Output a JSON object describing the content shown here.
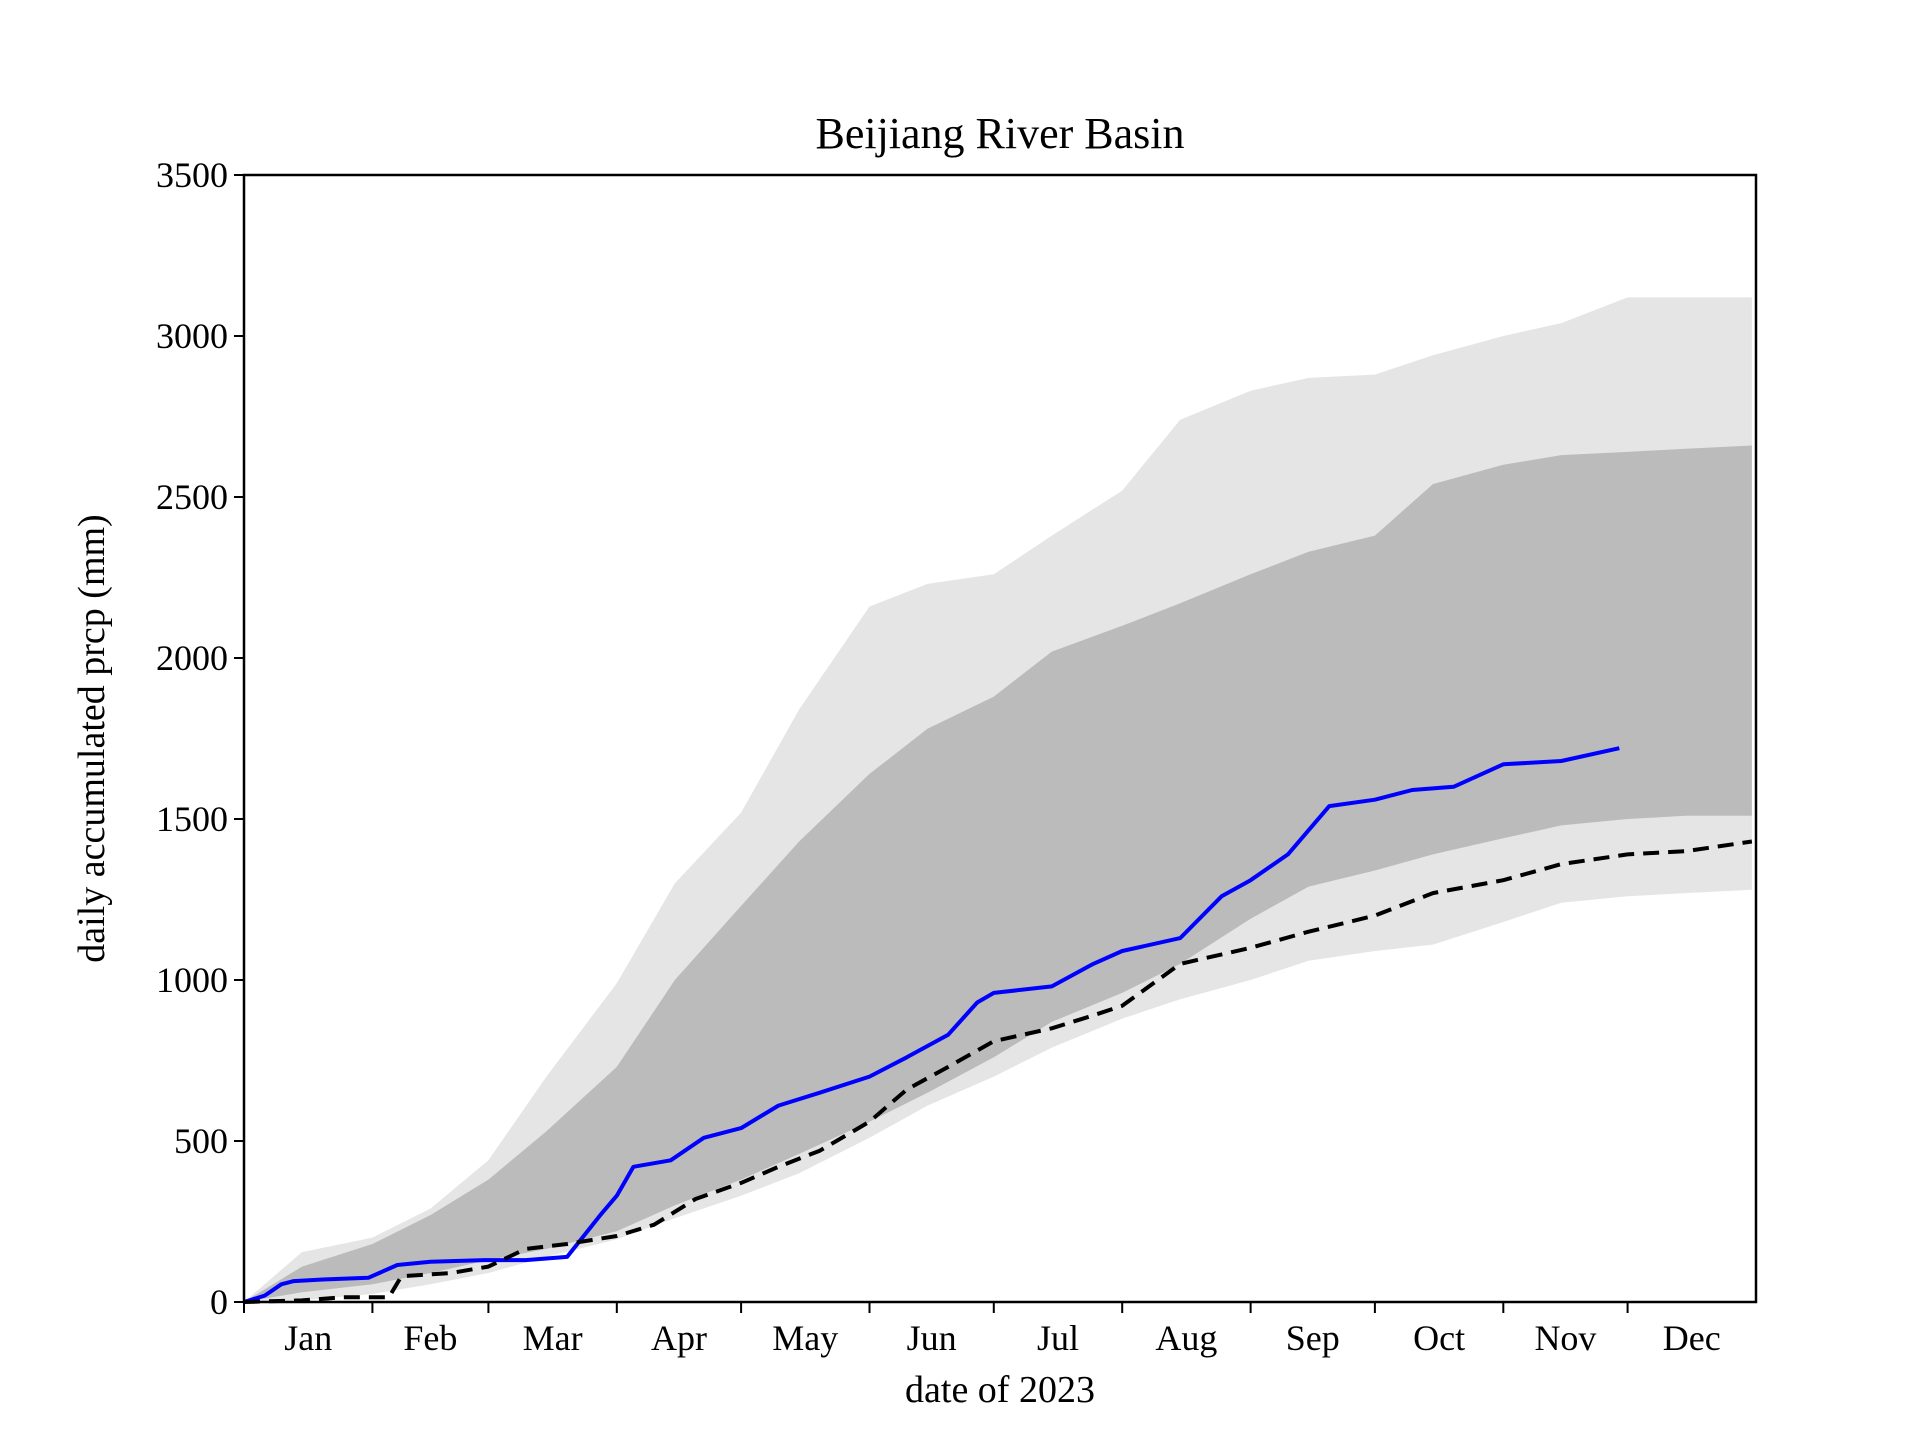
{
  "chart_data": {
    "type": "area",
    "title": "Beijiang River Basin",
    "xlabel": "date of 2023",
    "ylabel": "daily accumulated prcp (mm)",
    "xlim": [
      "2023-01-01",
      "2023-12-31"
    ],
    "ylim": [
      0,
      3500
    ],
    "yticks": [
      0,
      500,
      1000,
      1500,
      2000,
      2500,
      3000,
      3500
    ],
    "xtick_labels": [
      "Jan",
      "Feb",
      "Mar",
      "Apr",
      "May",
      "Jun",
      "Jul",
      "Aug",
      "Sep",
      "Oct",
      "Nov",
      "Dec"
    ],
    "grid": false,
    "legend": null,
    "x": [
      "2023-01-01",
      "2023-01-15",
      "2023-02-01",
      "2023-02-15",
      "2023-03-01",
      "2023-03-15",
      "2023-04-01",
      "2023-04-15",
      "2023-05-01",
      "2023-05-15",
      "2023-06-01",
      "2023-06-15",
      "2023-07-01",
      "2023-07-15",
      "2023-08-01",
      "2023-08-15",
      "2023-09-01",
      "2023-09-15",
      "2023-10-01",
      "2023-10-15",
      "2023-11-01",
      "2023-11-15",
      "2023-12-01",
      "2023-12-15",
      "2023-12-31"
    ],
    "bands": [
      {
        "color": "#e5e5e5",
        "lower": [
          0,
          5,
          25,
          55,
          90,
          140,
          195,
          260,
          330,
          400,
          510,
          610,
          700,
          790,
          880,
          940,
          1000,
          1060,
          1090,
          1110,
          1180,
          1240,
          1260,
          1270,
          1280
        ],
        "upper": [
          0,
          155,
          200,
          290,
          440,
          700,
          990,
          1300,
          1520,
          1840,
          2160,
          2230,
          2260,
          2380,
          2520,
          2740,
          2830,
          2870,
          2880,
          2940,
          3000,
          3040,
          3120,
          3120,
          3120
        ]
      },
      {
        "color": "#bbbbbb",
        "lower": [
          0,
          30,
          55,
          90,
          130,
          165,
          220,
          300,
          380,
          460,
          560,
          650,
          760,
          870,
          960,
          1050,
          1190,
          1290,
          1340,
          1390,
          1440,
          1480,
          1500,
          1510,
          1510
        ],
        "upper": [
          0,
          110,
          180,
          270,
          380,
          530,
          730,
          1000,
          1230,
          1430,
          1640,
          1780,
          1880,
          2020,
          2100,
          2170,
          2260,
          2330,
          2380,
          2540,
          2600,
          2630,
          2640,
          2650,
          2660
        ]
      }
    ],
    "series": [
      {
        "name": "",
        "color": "#0000ff",
        "style": "solid",
        "x": [
          "2023-01-01",
          "2023-01-06",
          "2023-01-10",
          "2023-01-13",
          "2023-01-20",
          "2023-01-31",
          "2023-02-07",
          "2023-02-15",
          "2023-02-28",
          "2023-03-10",
          "2023-03-20",
          "2023-03-28",
          "2023-04-01",
          "2023-04-05",
          "2023-04-14",
          "2023-04-22",
          "2023-05-01",
          "2023-05-10",
          "2023-05-20",
          "2023-06-01",
          "2023-06-10",
          "2023-06-20",
          "2023-06-27",
          "2023-07-01",
          "2023-07-15",
          "2023-07-25",
          "2023-08-01",
          "2023-08-15",
          "2023-08-25",
          "2023-09-01",
          "2023-09-10",
          "2023-09-20",
          "2023-10-01",
          "2023-10-10",
          "2023-10-20",
          "2023-11-01",
          "2023-11-15",
          "2023-11-29"
        ],
        "values": [
          0,
          20,
          55,
          65,
          70,
          75,
          115,
          125,
          130,
          130,
          140,
          270,
          330,
          420,
          440,
          510,
          540,
          610,
          650,
          700,
          760,
          830,
          930,
          960,
          980,
          1050,
          1090,
          1130,
          1260,
          1310,
          1390,
          1540,
          1560,
          1590,
          1600,
          1670,
          1680,
          1720
        ]
      },
      {
        "name": "",
        "color": "#000000",
        "style": "dashed",
        "x": [
          "2023-01-01",
          "2023-01-15",
          "2023-01-25",
          "2023-02-05",
          "2023-02-08",
          "2023-02-20",
          "2023-03-01",
          "2023-03-10",
          "2023-03-20",
          "2023-04-01",
          "2023-04-10",
          "2023-04-20",
          "2023-05-01",
          "2023-05-10",
          "2023-05-20",
          "2023-06-01",
          "2023-06-10",
          "2023-06-20",
          "2023-07-01",
          "2023-07-15",
          "2023-07-25",
          "2023-08-01",
          "2023-08-15",
          "2023-09-01",
          "2023-09-15",
          "2023-10-01",
          "2023-10-15",
          "2023-11-01",
          "2023-11-15",
          "2023-12-01",
          "2023-12-15",
          "2023-12-31"
        ],
        "values": [
          0,
          5,
          15,
          15,
          80,
          90,
          110,
          165,
          180,
          205,
          240,
          320,
          370,
          420,
          470,
          560,
          660,
          730,
          810,
          850,
          890,
          920,
          1050,
          1100,
          1150,
          1200,
          1270,
          1310,
          1360,
          1390,
          1400,
          1430
        ]
      }
    ]
  }
}
